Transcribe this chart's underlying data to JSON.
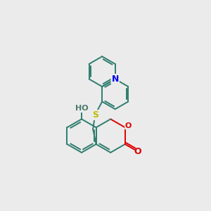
{
  "bg_color": "#ebebeb",
  "bond_color": "#2e7d6e",
  "N_color": "#0000ee",
  "O_color": "#dd0000",
  "S_color": "#bbbb00",
  "HO_color": "#4a7a6a",
  "bond_width": 1.4,
  "figsize": [
    3.0,
    3.0
  ],
  "dpi": 100,
  "xlim": [
    0,
    10
  ],
  "ylim": [
    0,
    10
  ]
}
